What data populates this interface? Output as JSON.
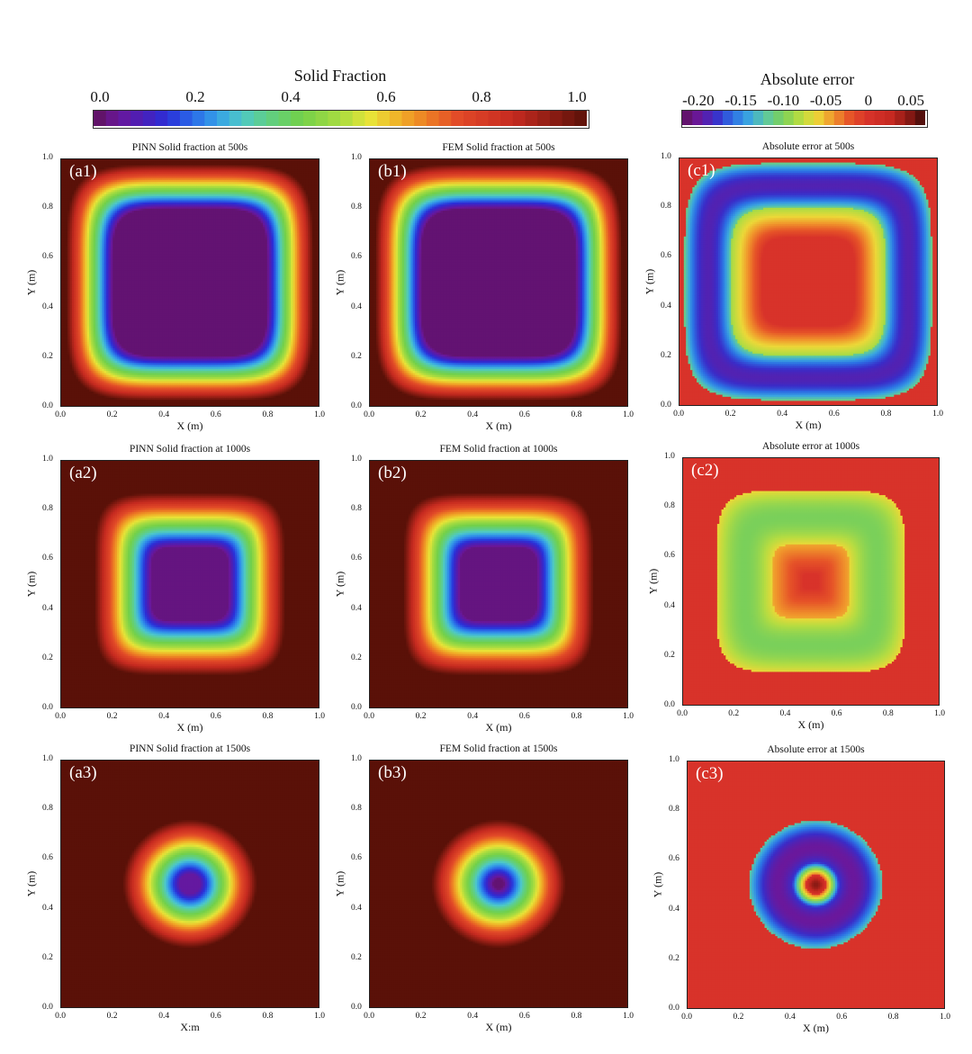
{
  "colorbars": {
    "solid": {
      "title": "Solid Fraction",
      "ticks": [
        "0.0",
        "0.2",
        "0.4",
        "0.6",
        "0.8",
        "1.0"
      ],
      "range": [
        0,
        1
      ]
    },
    "error": {
      "title": "Absolute error",
      "ticks": [
        "-0.20",
        "-0.15",
        "-0.10",
        "-0.05",
        "0",
        "0.05"
      ],
      "range": [
        -0.22,
        0.07
      ]
    }
  },
  "colors": {
    "solid_background": "#5a1108",
    "solid_core": "#5e1158",
    "error_background": "#d8332a"
  },
  "chart_data": [
    {
      "type": "heatmap",
      "id": "a1",
      "label": "(a1)",
      "title": "PINN Solid fraction at 500s",
      "xlabel": "X (m)",
      "ylabel": "Y (m)",
      "xlim": [
        0,
        1
      ],
      "ylim": [
        0,
        1
      ],
      "xticks": [
        "0.0",
        "0.2",
        "0.4",
        "0.6",
        "0.8",
        "1.0"
      ],
      "yticks": [
        "0.0",
        "0.2",
        "0.4",
        "0.6",
        "0.8",
        "1.0"
      ],
      "field": "solid",
      "shape": "squircle",
      "center": [
        0.5,
        0.5
      ],
      "front_half_width": 0.39,
      "front_width": 0.09,
      "core_value": 0.02
    },
    {
      "type": "heatmap",
      "id": "b1",
      "label": "(b1)",
      "title": "FEM Solid fraction at 500s",
      "xlabel": "X (m)",
      "ylabel": "Y (m)",
      "xlim": [
        0,
        1
      ],
      "ylim": [
        0,
        1
      ],
      "xticks": [
        "0.0",
        "0.2",
        "0.4",
        "0.6",
        "0.8",
        "1.0"
      ],
      "yticks": [
        "0.0",
        "0.2",
        "0.4",
        "0.6",
        "0.8",
        "1.0"
      ],
      "field": "solid",
      "shape": "squircle",
      "center": [
        0.5,
        0.5
      ],
      "front_half_width": 0.39,
      "front_width": 0.09,
      "core_value": 0.02
    },
    {
      "type": "heatmap",
      "id": "c1",
      "label": "(c1)",
      "title": "Absolute error at 500s",
      "xlabel": "X (m)",
      "ylabel": "Y (m)",
      "xlim": [
        0,
        1
      ],
      "ylim": [
        0,
        1
      ],
      "xticks": [
        "0.0",
        "0.2",
        "0.4",
        "0.6",
        "0.8",
        "1.0"
      ],
      "yticks": [
        "0.0",
        "0.2",
        "0.4",
        "0.6",
        "0.8",
        "1.0"
      ],
      "field": "error",
      "shape": "squircle",
      "center": [
        0.5,
        0.5
      ],
      "front_half_width": 0.39,
      "front_width": 0.09,
      "min_error": -0.19
    },
    {
      "type": "heatmap",
      "id": "a2",
      "label": "(a2)",
      "title": "PINN Solid fraction at 1000s",
      "xlabel": "X (m)",
      "ylabel": "Y (m)",
      "xlim": [
        0,
        1
      ],
      "ylim": [
        0,
        1
      ],
      "xticks": [
        "0.0",
        "0.2",
        "0.4",
        "0.6",
        "0.8",
        "1.0"
      ],
      "yticks": [
        "0.0",
        "0.2",
        "0.4",
        "0.6",
        "0.8",
        "1.0"
      ],
      "field": "solid",
      "shape": "squircle",
      "center": [
        0.5,
        0.5
      ],
      "front_half_width": 0.26,
      "front_width": 0.11,
      "core_value": 0.03
    },
    {
      "type": "heatmap",
      "id": "b2",
      "label": "(b2)",
      "title": "FEM Solid fraction at 1000s",
      "xlabel": "X (m)",
      "ylabel": "Y (m)",
      "xlim": [
        0,
        1
      ],
      "ylim": [
        0,
        1
      ],
      "xticks": [
        "0.0",
        "0.2",
        "0.4",
        "0.6",
        "0.8",
        "1.0"
      ],
      "yticks": [
        "0.0",
        "0.2",
        "0.4",
        "0.6",
        "0.8",
        "1.0"
      ],
      "field": "solid",
      "shape": "squircle",
      "center": [
        0.5,
        0.5
      ],
      "front_half_width": 0.26,
      "front_width": 0.11,
      "core_value": 0.03
    },
    {
      "type": "heatmap",
      "id": "c2",
      "label": "(c2)",
      "title": "Absolute error at 1000s",
      "xlabel": "X (m)",
      "ylabel": "Y (m)",
      "xlim": [
        0,
        1
      ],
      "ylim": [
        0,
        1
      ],
      "xticks": [
        "0.0",
        "0.2",
        "0.4",
        "0.6",
        "0.8",
        "1.0"
      ],
      "yticks": [
        "0.0",
        "0.2",
        "0.4",
        "0.6",
        "0.8",
        "1.0"
      ],
      "field": "error",
      "shape": "squircle",
      "center": [
        0.5,
        0.5
      ],
      "front_half_width": 0.26,
      "front_width": 0.11,
      "min_error": -0.1
    },
    {
      "type": "heatmap",
      "id": "a3",
      "label": "(a3)",
      "title": "PINN Solid fraction at 1500s",
      "xlabel": "X:m",
      "ylabel": "Y (m)",
      "xlim": [
        0,
        1
      ],
      "ylim": [
        0,
        1
      ],
      "xticks": [
        "0.0",
        "0.2",
        "0.4",
        "0.6",
        "0.8",
        "1.0"
      ],
      "yticks": [
        "0.0",
        "0.2",
        "0.4",
        "0.6",
        "0.8",
        "1.0"
      ],
      "field": "solid",
      "shape": "circle",
      "center": [
        0.5,
        0.5
      ],
      "front_half_width": 0.15,
      "front_width": 0.11,
      "core_value": 0.06
    },
    {
      "type": "heatmap",
      "id": "b3",
      "label": "(b3)",
      "title": "FEM Solid fraction at 1500s",
      "xlabel": "X (m)",
      "ylabel": "Y (m)",
      "xlim": [
        0,
        1
      ],
      "ylim": [
        0,
        1
      ],
      "xticks": [
        "0.0",
        "0.2",
        "0.4",
        "0.6",
        "0.8",
        "1.0"
      ],
      "yticks": [
        "0.0",
        "0.2",
        "0.4",
        "0.6",
        "0.8",
        "1.0"
      ],
      "field": "solid",
      "shape": "circle",
      "center": [
        0.5,
        0.5
      ],
      "front_half_width": 0.14,
      "front_width": 0.12,
      "core_value": 0.02
    },
    {
      "type": "heatmap",
      "id": "c3",
      "label": "(c3)",
      "title": "Absolute error at 1500s",
      "xlabel": "X (m)",
      "ylabel": "Y (m)",
      "xlim": [
        0,
        1
      ],
      "ylim": [
        0,
        1
      ],
      "xticks": [
        "0.0",
        "0.2",
        "0.4",
        "0.6",
        "0.8",
        "1.0"
      ],
      "yticks": [
        "0.0",
        "0.2",
        "0.4",
        "0.6",
        "0.8",
        "1.0"
      ],
      "field": "error",
      "shape": "circle",
      "center": [
        0.5,
        0.5
      ],
      "front_half_width": 0.15,
      "front_width": 0.11,
      "min_error": -0.2,
      "center_error": 0.05
    }
  ]
}
